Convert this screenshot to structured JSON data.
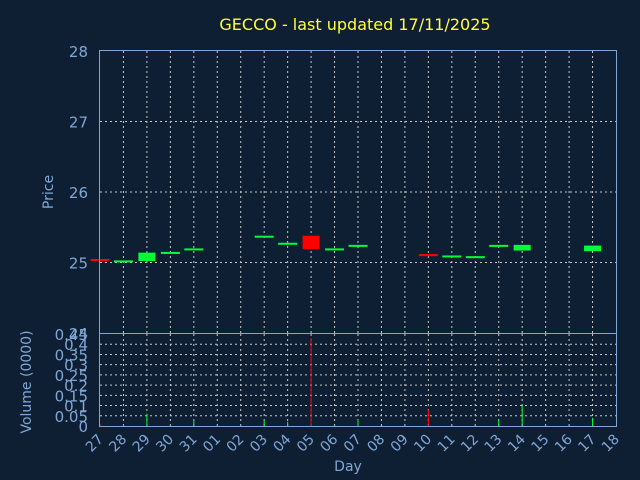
{
  "chart_data": [
    {
      "type": "candlestick",
      "title": "GECCO - last updated 17/11/2025",
      "ylabel": "Price",
      "ylim": [
        24,
        28
      ],
      "yticks": [
        "24",
        "25",
        "26",
        "27",
        "28"
      ],
      "grid": true,
      "x": [
        "27",
        "28",
        "29",
        "30",
        "31",
        "01",
        "02",
        "03",
        "04",
        "05",
        "06",
        "07",
        "08",
        "09",
        "10",
        "11",
        "12",
        "13",
        "14",
        "15",
        "16",
        "17",
        "18"
      ],
      "candles": [
        {
          "day": "27",
          "open": 25.05,
          "close": 25.03,
          "color": "#ff0000"
        },
        {
          "day": "28",
          "open": 25.01,
          "close": 25.03,
          "color": "#00ff33"
        },
        {
          "day": "29",
          "open": 25.02,
          "close": 25.14,
          "color": "#00ff33"
        },
        {
          "day": "30",
          "open": 25.13,
          "close": 25.15,
          "color": "#00ff33"
        },
        {
          "day": "31",
          "open": 25.18,
          "close": 25.2,
          "color": "#00ff33"
        },
        {
          "day": "03",
          "open": 25.36,
          "close": 25.38,
          "color": "#00ff33"
        },
        {
          "day": "04",
          "open": 25.26,
          "close": 25.28,
          "color": "#00ff33"
        },
        {
          "day": "05",
          "open": 25.38,
          "close": 25.19,
          "color": "#ff0000"
        },
        {
          "day": "06",
          "open": 25.18,
          "close": 25.2,
          "color": "#00ff33"
        },
        {
          "day": "07",
          "open": 25.23,
          "close": 25.25,
          "color": "#00ff33"
        },
        {
          "day": "10",
          "open": 25.12,
          "close": 25.09,
          "color": "#ff0000"
        },
        {
          "day": "11",
          "open": 25.08,
          "close": 25.1,
          "color": "#00ff33"
        },
        {
          "day": "12",
          "open": 25.07,
          "close": 25.09,
          "color": "#00ff33"
        },
        {
          "day": "13",
          "open": 25.23,
          "close": 25.25,
          "color": "#00ff33"
        },
        {
          "day": "14",
          "open": 25.17,
          "close": 25.25,
          "color": "#00ff33"
        },
        {
          "day": "17",
          "open": 25.16,
          "close": 25.24,
          "color": "#00ff33"
        }
      ]
    },
    {
      "type": "bar",
      "title": "",
      "xlabel": "Day",
      "ylabel": "Volume (0000)",
      "ylim": [
        0,
        0.45
      ],
      "yticks": [
        "0",
        "0.05",
        "0.1",
        "0.15",
        "0.2",
        "0.25",
        "0.3",
        "0.35",
        "0.4",
        "0.45"
      ],
      "grid": true,
      "categories": [
        "27",
        "28",
        "29",
        "30",
        "31",
        "01",
        "02",
        "03",
        "04",
        "05",
        "06",
        "07",
        "08",
        "09",
        "10",
        "11",
        "12",
        "13",
        "14",
        "15",
        "16",
        "17",
        "18"
      ],
      "values": [
        0.01,
        0.005,
        0.06,
        0.005,
        0.03,
        0,
        0,
        0.03,
        0.02,
        0.43,
        0.005,
        0.03,
        0,
        0,
        0.08,
        0.005,
        0.01,
        0.03,
        0.1,
        0,
        0,
        0.04,
        0
      ],
      "colors": [
        "#ff0000",
        "#00ff33",
        "#00ff33",
        "#00ff33",
        "#00ff33",
        "#00ff33",
        "#00ff33",
        "#00ff33",
        "#00ff33",
        "#ff0000",
        "#00ff33",
        "#00ff33",
        "#00ff33",
        "#00ff33",
        "#ff0000",
        "#00ff33",
        "#00ff33",
        "#00ff33",
        "#00ff33",
        "#00ff33",
        "#00ff33",
        "#00ff33",
        "#00ff33"
      ]
    }
  ],
  "colors": {
    "background": "#0f1f33",
    "axis": "#7fa7d6",
    "title": "#ffff33",
    "up": "#00ff33",
    "down": "#ff0000"
  }
}
